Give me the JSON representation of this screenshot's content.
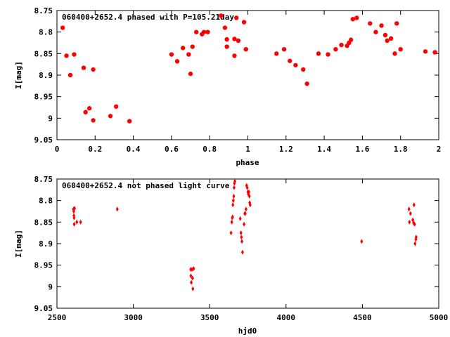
{
  "chart_data": [
    {
      "type": "scatter",
      "title": "060400+2652.4 phased with P=105.21day",
      "xlabel": "phase",
      "ylabel": "I[mag]",
      "xlim": [
        0,
        2
      ],
      "ylim": [
        8.75,
        9.05
      ],
      "y_inverted": true,
      "grid": false,
      "marker_color": "#ff0000",
      "marker": "filled-circle",
      "x_ticks": [
        "0",
        "0.2",
        "0.4",
        "0.6",
        "0.8",
        "1",
        "1.2",
        "1.4",
        "1.6",
        "1.8",
        "2"
      ],
      "y_ticks": [
        "8.75",
        "8.8",
        "8.85",
        "8.9",
        "8.95",
        "9",
        "9.05"
      ],
      "points": [
        [
          0.03,
          8.79
        ],
        [
          0.05,
          8.855
        ],
        [
          0.07,
          8.9
        ],
        [
          0.09,
          8.852
        ],
        [
          0.14,
          8.883
        ],
        [
          0.15,
          8.986
        ],
        [
          0.17,
          8.977
        ],
        [
          0.19,
          8.887
        ],
        [
          0.19,
          9.005
        ],
        [
          0.28,
          8.995
        ],
        [
          0.31,
          8.973
        ],
        [
          0.38,
          9.007
        ],
        [
          0.6,
          8.852
        ],
        [
          0.63,
          8.868
        ],
        [
          0.66,
          8.837
        ],
        [
          0.69,
          8.852
        ],
        [
          0.7,
          8.897
        ],
        [
          0.71,
          8.834
        ],
        [
          0.73,
          8.8
        ],
        [
          0.76,
          8.805
        ],
        [
          0.77,
          8.8
        ],
        [
          0.79,
          8.8
        ],
        [
          0.86,
          8.762
        ],
        [
          0.88,
          8.79
        ],
        [
          0.89,
          8.817
        ],
        [
          0.89,
          8.834
        ],
        [
          0.93,
          8.855
        ],
        [
          0.93,
          8.816
        ],
        [
          0.94,
          8.767
        ],
        [
          0.95,
          8.82
        ],
        [
          0.98,
          8.777
        ],
        [
          0.99,
          8.84
        ],
        [
          1.15,
          8.85
        ],
        [
          1.19,
          8.84
        ],
        [
          1.22,
          8.867
        ],
        [
          1.25,
          8.877
        ],
        [
          1.29,
          8.887
        ],
        [
          1.31,
          8.92
        ],
        [
          1.37,
          8.85
        ],
        [
          1.42,
          8.852
        ],
        [
          1.46,
          8.84
        ],
        [
          1.49,
          8.83
        ],
        [
          1.52,
          8.832
        ],
        [
          1.53,
          8.825
        ],
        [
          1.54,
          8.818
        ],
        [
          1.55,
          8.77
        ],
        [
          1.57,
          8.767
        ],
        [
          1.64,
          8.78
        ],
        [
          1.67,
          8.8
        ],
        [
          1.7,
          8.785
        ],
        [
          1.72,
          8.807
        ],
        [
          1.73,
          8.82
        ],
        [
          1.75,
          8.815
        ],
        [
          1.77,
          8.85
        ],
        [
          1.78,
          8.78
        ],
        [
          1.8,
          8.84
        ],
        [
          1.93,
          8.845
        ],
        [
          1.98,
          8.847
        ]
      ]
    },
    {
      "type": "scatter",
      "title": "060400+2652.4 not phased light curve",
      "xlabel": "hjd0",
      "ylabel": "I[mag]",
      "xlim": [
        2500,
        5000
      ],
      "ylim": [
        8.75,
        9.05
      ],
      "y_inverted": true,
      "grid": false,
      "marker_color": "#ff0000",
      "marker": "small-diamond",
      "x_ticks": [
        "2500",
        "3000",
        "3500",
        "4000",
        "4500",
        "5000"
      ],
      "y_ticks": [
        "8.75",
        "8.8",
        "8.85",
        "8.9",
        "8.95",
        "9",
        "9.05"
      ],
      "points": [
        [
          2608,
          8.82
        ],
        [
          2610,
          8.825
        ],
        [
          2611,
          8.835
        ],
        [
          2612,
          8.84
        ],
        [
          2613,
          8.855
        ],
        [
          2615,
          8.818
        ],
        [
          2630,
          8.85
        ],
        [
          2655,
          8.85
        ],
        [
          2895,
          8.82
        ],
        [
          3376,
          8.96
        ],
        [
          3377,
          8.975
        ],
        [
          3380,
          8.99
        ],
        [
          3384,
          8.96
        ],
        [
          3388,
          8.98
        ],
        [
          3390,
          9.005
        ],
        [
          3395,
          8.958
        ],
        [
          3640,
          8.875
        ],
        [
          3645,
          8.85
        ],
        [
          3648,
          8.84
        ],
        [
          3650,
          8.838
        ],
        [
          3652,
          8.81
        ],
        [
          3655,
          8.8
        ],
        [
          3658,
          8.79
        ],
        [
          3660,
          8.77
        ],
        [
          3662,
          8.76
        ],
        [
          3665,
          8.755
        ],
        [
          3700,
          8.842
        ],
        [
          3705,
          8.875
        ],
        [
          3708,
          8.885
        ],
        [
          3711,
          8.895
        ],
        [
          3715,
          8.92
        ],
        [
          3725,
          8.855
        ],
        [
          3730,
          8.83
        ],
        [
          3733,
          8.83
        ],
        [
          3738,
          8.82
        ],
        [
          3742,
          8.765
        ],
        [
          3746,
          8.77
        ],
        [
          3750,
          8.78
        ],
        [
          3753,
          8.785
        ],
        [
          3757,
          8.78
        ],
        [
          3760,
          8.79
        ],
        [
          3762,
          8.805
        ],
        [
          3765,
          8.81
        ],
        [
          4495,
          8.895
        ],
        [
          4805,
          8.82
        ],
        [
          4808,
          8.85
        ],
        [
          4815,
          8.83
        ],
        [
          4830,
          8.845
        ],
        [
          4835,
          8.852
        ],
        [
          4838,
          8.81
        ],
        [
          4842,
          8.855
        ],
        [
          4845,
          8.9
        ],
        [
          4850,
          8.89
        ],
        [
          4852,
          8.885
        ]
      ]
    }
  ]
}
